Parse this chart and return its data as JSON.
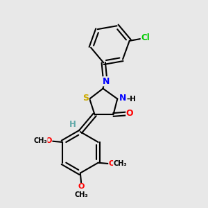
{
  "bg_color": "#e8e8e8",
  "atom_colors": {
    "C": "#000000",
    "H": "#5fa8a8",
    "N": "#0000ff",
    "O": "#ff0000",
    "S": "#ccaa00",
    "Cl": "#00cc00"
  },
  "bond_color": "#000000",
  "bond_width": 1.5,
  "fig_size": [
    3.0,
    3.0
  ],
  "dpi": 100,
  "xlim": [
    0,
    10
  ],
  "ylim": [
    0,
    10
  ]
}
